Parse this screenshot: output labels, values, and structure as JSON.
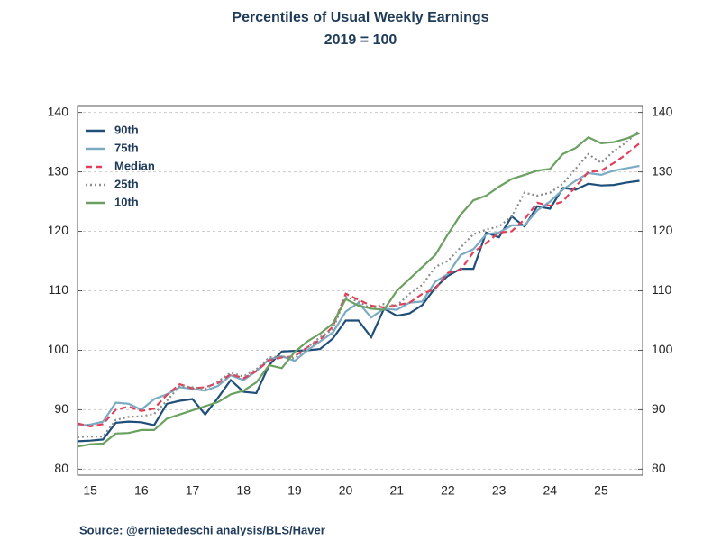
{
  "chart_data": {
    "type": "line",
    "title": "Percentiles of Usual Weekly Earnings",
    "subtitle": "2019 = 100",
    "source": "Source:  @ernietedeschi analysis/BLS/Haver",
    "categories": [
      null,
      "15",
      null,
      null,
      null,
      "16",
      null,
      null,
      null,
      "17",
      null,
      null,
      null,
      "18",
      null,
      null,
      null,
      "19",
      null,
      null,
      null,
      "20",
      null,
      null,
      null,
      "21",
      null,
      null,
      null,
      "22",
      null,
      null,
      null,
      "23",
      null,
      null,
      null,
      "24",
      null,
      null,
      null,
      "25",
      null,
      null,
      null
    ],
    "ylim": [
      79,
      141
    ],
    "yticks": [
      80,
      90,
      100,
      110,
      120,
      130,
      140
    ],
    "y2lim": [
      79,
      141
    ],
    "y2ticks": [
      80,
      90,
      100,
      110,
      120,
      130,
      140
    ],
    "grid": true,
    "legend": "top-left",
    "series": [
      {
        "name": "90th",
        "color": "#1f4e79",
        "style": "solid",
        "values": [
          84.7,
          84.8,
          85.0,
          87.8,
          88.0,
          87.9,
          87.4,
          91.0,
          91.5,
          91.8,
          89.2,
          92.0,
          95.0,
          93.0,
          92.8,
          97.5,
          99.8,
          99.9,
          100.0,
          100.2,
          102.0,
          105.0,
          105.0,
          102.2,
          107.0,
          105.8,
          106.2,
          107.6,
          110.5,
          112.5,
          113.7,
          113.7,
          119.8,
          119.0,
          122.5,
          120.8,
          124.2,
          123.8,
          127.3,
          127.0,
          128.0,
          127.7,
          127.8,
          128.2,
          128.5
        ]
      },
      {
        "name": "75th",
        "color": "#7aabc2",
        "style": "solid",
        "values": [
          87.3,
          87.5,
          88.0,
          91.2,
          91.0,
          90.0,
          91.8,
          92.6,
          93.8,
          93.5,
          93.2,
          94.0,
          95.8,
          95.0,
          96.5,
          98.5,
          99.0,
          98.2,
          100.0,
          101.5,
          103.0,
          106.5,
          108.0,
          105.5,
          107.0,
          106.8,
          108.0,
          108.2,
          111.5,
          112.8,
          116.0,
          117.0,
          119.5,
          119.8,
          121.0,
          121.0,
          123.5,
          125.0,
          127.0,
          128.5,
          129.8,
          129.5,
          130.2,
          130.6,
          131.0
        ]
      },
      {
        "name": "Median",
        "color": "#e0405a",
        "style": "dashed",
        "values": [
          87.7,
          87.2,
          87.6,
          90.0,
          90.5,
          89.8,
          90.2,
          92.5,
          94.3,
          93.6,
          93.8,
          94.5,
          96.0,
          95.3,
          96.5,
          98.3,
          98.8,
          99.0,
          100.5,
          101.8,
          104.0,
          109.5,
          108.5,
          107.5,
          107.2,
          107.6,
          108.0,
          109.5,
          110.3,
          113.0,
          113.5,
          116.5,
          118.0,
          119.8,
          120.0,
          122.0,
          124.8,
          124.3,
          125.0,
          127.5,
          130.0,
          130.2,
          131.5,
          133.0,
          134.8
        ]
      },
      {
        "name": "25th",
        "color": "#8c8c8c",
        "style": "dotted",
        "values": [
          85.4,
          85.5,
          85.5,
          88.3,
          88.8,
          88.9,
          89.3,
          91.5,
          94.0,
          93.8,
          93.5,
          94.8,
          96.2,
          95.6,
          96.8,
          98.8,
          99.0,
          98.6,
          100.5,
          102.2,
          103.5,
          109.0,
          108.2,
          107.0,
          107.8,
          107.5,
          109.5,
          111.0,
          114.0,
          115.0,
          117.3,
          119.5,
          120.3,
          120.8,
          122.5,
          126.5,
          126.0,
          126.5,
          128.0,
          130.5,
          133.0,
          131.5,
          133.5,
          135.0,
          137.0
        ]
      },
      {
        "name": "10th",
        "color": "#6aa060",
        "style": "solid",
        "values": [
          83.8,
          84.2,
          84.3,
          86.0,
          86.1,
          86.6,
          86.6,
          88.5,
          89.2,
          89.9,
          90.6,
          91.3,
          92.6,
          93.2,
          94.6,
          97.5,
          97.0,
          99.7,
          101.5,
          102.8,
          104.5,
          108.6,
          107.5,
          107.0,
          106.8,
          110.0,
          112.0,
          114.0,
          116.0,
          119.5,
          122.8,
          125.2,
          126.0,
          127.5,
          128.8,
          129.5,
          130.2,
          130.5,
          133.0,
          134.0,
          135.8,
          134.8,
          135.0,
          135.6,
          136.5
        ]
      }
    ]
  }
}
